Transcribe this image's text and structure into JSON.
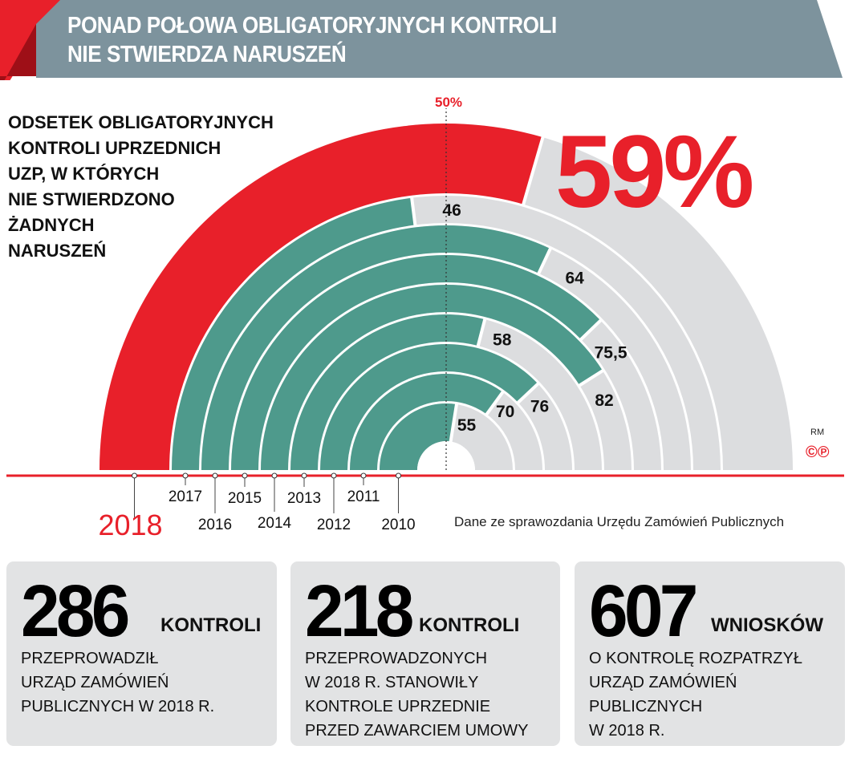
{
  "header": {
    "title_line1": "PONAD POŁOWA OBLIGATORYJNYCH KONTROLI",
    "title_line2": "NIE STWIERDZA NARUSZEŃ"
  },
  "subtitle": "ODSETEK OBLIGATORYJNYCH\nKONTROLI UPRZEDNICH\nUZP, W KTÓRYCH\nNIE STWIERDZONO\nŻADNYCH\nNARUSZEŃ",
  "big_value": "59%",
  "source": "Dane ze sprawozdania Urzędu Zamówień Publicznych",
  "credit": {
    "initials": "RM",
    "marks": "©℗"
  },
  "colors": {
    "highlight": "#e8202a",
    "series": "#4e9a8c",
    "track": "#dcdddf",
    "header": "#7d939d"
  },
  "chart_data": {
    "type": "bar",
    "layout": "radial semicircle",
    "categories": [
      "2018",
      "2017",
      "2016",
      "2015",
      "2014",
      "2013",
      "2012",
      "2011",
      "2010"
    ],
    "values": [
      59,
      46,
      64,
      75.5,
      82,
      58,
      76,
      70,
      55
    ],
    "value_labels": [
      "59%",
      "46",
      "64",
      "75,5",
      "82",
      "58",
      "76",
      "70",
      "55"
    ],
    "highlight_category": "2018",
    "ylim": [
      0,
      100
    ],
    "reference_line": {
      "value": 50,
      "label": "50%"
    }
  },
  "stats": [
    {
      "number": "286",
      "unit": "KONTROLI",
      "desc": "PRZEPROWADZIŁ\nURZĄD ZAMÓWIEŃ\nPUBLICZNYCH W 2018 R."
    },
    {
      "number": "218",
      "unit": "KONTROLI",
      "desc": "PRZEPROWADZONYCH\nW 2018 R. STANOWIŁY\nKONTROLE UPRZEDNIE\nPRZED ZAWARCIEM UMOWY"
    },
    {
      "number": "607",
      "unit": "WNIOSKÓW",
      "desc": "O KONTROLĘ ROZPATRZYŁ\nURZĄD ZAMÓWIEŃ\nPUBLICZNYCH\nW 2018 R."
    }
  ]
}
